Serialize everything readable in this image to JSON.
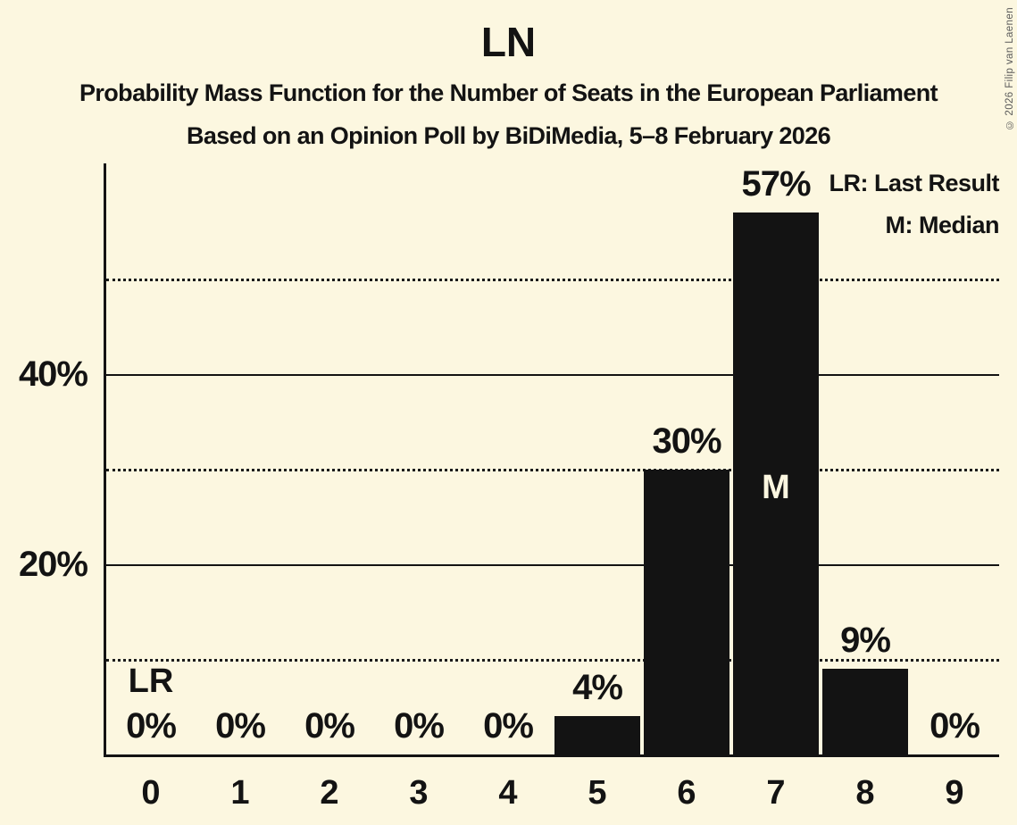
{
  "header": {
    "title": "LN",
    "subtitle": "Probability Mass Function for the Number of Seats in the European Parliament",
    "subsubtitle": "Based on an Opinion Poll by BiDiMedia, 5–8 February 2026"
  },
  "legend": {
    "lr_label": "LR: Last Result",
    "m_label": "M: Median"
  },
  "copyright": "© 2026 Filip van Laenen",
  "colors": {
    "background": "#FCF7E0",
    "bar": "#131313",
    "text": "#131313",
    "median_label": "#FCF7E0",
    "copyright_text": "#5A5A5A"
  },
  "chart_data": {
    "type": "bar",
    "title": "LN",
    "categories": [
      "0",
      "1",
      "2",
      "3",
      "4",
      "5",
      "6",
      "7",
      "8",
      "9"
    ],
    "values": [
      0,
      0,
      0,
      0,
      0,
      4,
      30,
      57,
      9,
      0
    ],
    "bar_labels": [
      "0%",
      "0%",
      "0%",
      "0%",
      "0%",
      "4%",
      "30%",
      "57%",
      "9%",
      "0%"
    ],
    "xlabel": "",
    "ylabel": "",
    "ylim_pct": [
      0,
      62.2
    ],
    "yticks": [
      {
        "pct": 20,
        "label": "20%"
      },
      {
        "pct": 40,
        "label": "40%"
      }
    ],
    "gridlines": [
      {
        "pct": 10,
        "style": "dotted"
      },
      {
        "pct": 20,
        "style": "solid"
      },
      {
        "pct": 30,
        "style": "dotted"
      },
      {
        "pct": 40,
        "style": "solid"
      },
      {
        "pct": 50,
        "style": "dotted"
      }
    ],
    "annotations": [
      {
        "category": "0",
        "text": "LR",
        "meaning": "Last Result",
        "placement": "above"
      },
      {
        "category": "7",
        "text": "M",
        "meaning": "Median",
        "placement": "inside"
      }
    ],
    "legend_position": "top-right",
    "grid": true
  }
}
